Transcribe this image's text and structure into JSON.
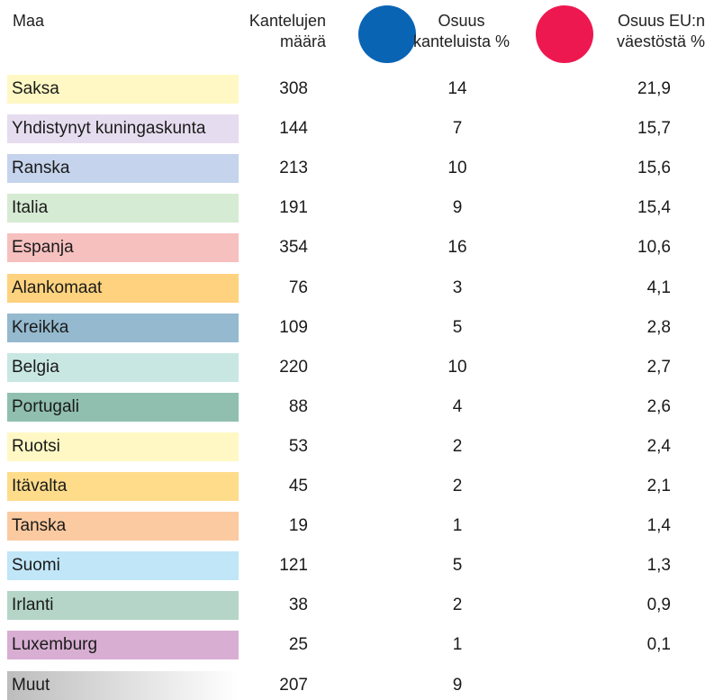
{
  "header": {
    "columns": [
      [
        "Maa"
      ],
      [
        "Kantelujen",
        "määrä"
      ],
      [
        "Osuus",
        "kanteluista %"
      ],
      [
        "Osuus EU:n",
        "väestöstä %"
      ]
    ],
    "column_colors": [
      null,
      null,
      "#0a64b4",
      "#ee1850"
    ]
  },
  "table": {
    "rows": [
      [
        "Saksa",
        308,
        14,
        "21,9"
      ],
      [
        "Yhdistynyt kuningaskunta",
        144,
        7,
        "15,7"
      ],
      [
        "Ranska",
        213,
        10,
        "15,6"
      ],
      [
        "Italia",
        191,
        9,
        "15,4"
      ],
      [
        "Espanja",
        354,
        16,
        "10,6"
      ],
      [
        "Alankomaat",
        76,
        3,
        "4,1"
      ],
      [
        "Kreikka",
        109,
        5,
        "2,8"
      ],
      [
        "Belgia",
        220,
        10,
        "2,7"
      ],
      [
        "Portugali",
        88,
        4,
        "2,6"
      ],
      [
        "Ruotsi",
        53,
        2,
        "2,4"
      ],
      [
        "Itävalta",
        45,
        2,
        "2,1"
      ],
      [
        "Tanska",
        19,
        1,
        "1,4"
      ],
      [
        "Suomi",
        121,
        5,
        "1,3"
      ],
      [
        "Irlanti",
        38,
        2,
        "0,9"
      ],
      [
        "Luxemburg",
        25,
        1,
        "0,1"
      ],
      [
        "Muut",
        207,
        9,
        null
      ]
    ],
    "row_colors": [
      "#fff8c4",
      "#e6dcef",
      "#c5d3ec",
      "#d6ebd3",
      "#f6c0bf",
      "#fed27e",
      "#95b9ce",
      "#c8e7e3",
      "#90bfb0",
      "#fff8c4",
      "#fedc8a",
      "#fccaa0",
      "#c0e6f8",
      "#b4d5c8",
      "#d8aed3",
      "#bdbdbd"
    ]
  }
}
